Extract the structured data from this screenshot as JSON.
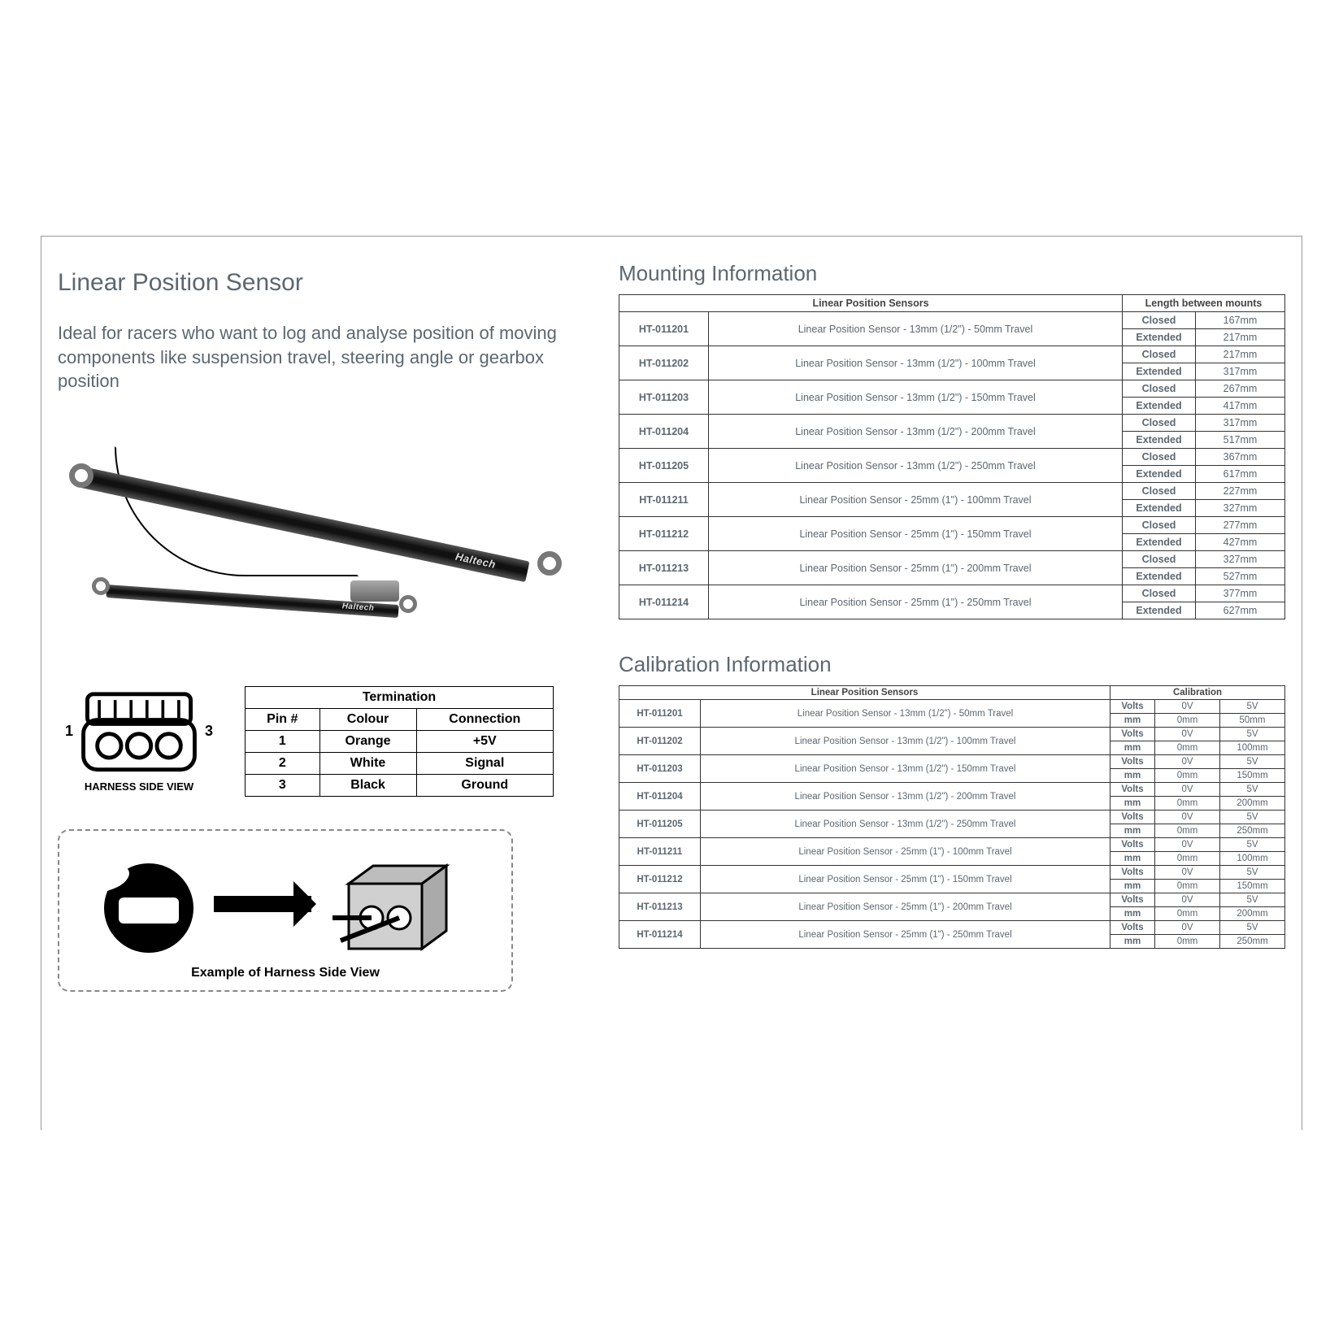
{
  "title": "Linear Position Sensor",
  "subtitle": "Ideal for racers who want to log and analyse position of moving components like suspension travel, steering angle or gearbox position",
  "mounting_heading": "Mounting Information",
  "calibration_heading": "Calibration Information",
  "harness_caption": "HARNESS SIDE VIEW",
  "pin_left": "1",
  "pin_right": "3",
  "example_caption": "Example of Harness Side View",
  "brand_text": "Haltech",
  "termination": {
    "title": "Termination",
    "columns": [
      "Pin #",
      "Colour",
      "Connection"
    ],
    "rows": [
      [
        "1",
        "Orange",
        "+5V"
      ],
      [
        "2",
        "White",
        "Signal"
      ],
      [
        "3",
        "Black",
        "Ground"
      ]
    ]
  },
  "mounting": {
    "head_sensors": "Linear Position Sensors",
    "head_length": "Length between mounts",
    "state_closed": "Closed",
    "state_extended": "Extended",
    "rows": [
      {
        "pn": "HT-011201",
        "desc": "Linear Position Sensor - 13mm (1/2\") - 50mm Travel",
        "closed": "167mm",
        "extended": "217mm"
      },
      {
        "pn": "HT-011202",
        "desc": "Linear Position Sensor - 13mm (1/2\") - 100mm Travel",
        "closed": "217mm",
        "extended": "317mm"
      },
      {
        "pn": "HT-011203",
        "desc": "Linear Position Sensor - 13mm (1/2\") - 150mm Travel",
        "closed": "267mm",
        "extended": "417mm"
      },
      {
        "pn": "HT-011204",
        "desc": "Linear Position Sensor - 13mm (1/2\") - 200mm Travel",
        "closed": "317mm",
        "extended": "517mm"
      },
      {
        "pn": "HT-011205",
        "desc": "Linear Position Sensor - 13mm (1/2\") - 250mm Travel",
        "closed": "367mm",
        "extended": "617mm"
      },
      {
        "pn": "HT-011211",
        "desc": "Linear Position Sensor - 25mm (1\") - 100mm Travel",
        "closed": "227mm",
        "extended": "327mm"
      },
      {
        "pn": "HT-011212",
        "desc": "Linear Position Sensor - 25mm (1\") - 150mm Travel",
        "closed": "277mm",
        "extended": "427mm"
      },
      {
        "pn": "HT-011213",
        "desc": "Linear Position Sensor - 25mm (1\") - 200mm Travel",
        "closed": "327mm",
        "extended": "527mm"
      },
      {
        "pn": "HT-011214",
        "desc": "Linear Position Sensor - 25mm (1\") - 250mm Travel",
        "closed": "377mm",
        "extended": "627mm"
      }
    ]
  },
  "calibration": {
    "head_sensors": "Linear Position Sensors",
    "head_cal": "Calibration",
    "label_volts": "Volts",
    "label_mm": "mm",
    "rows": [
      {
        "pn": "HT-011201",
        "desc": "Linear Position Sensor - 13mm (1/2\") - 50mm Travel",
        "v0": "0V",
        "v1": "5V",
        "m0": "0mm",
        "m1": "50mm"
      },
      {
        "pn": "HT-011202",
        "desc": "Linear Position Sensor - 13mm (1/2\") - 100mm Travel",
        "v0": "0V",
        "v1": "5V",
        "m0": "0mm",
        "m1": "100mm"
      },
      {
        "pn": "HT-011203",
        "desc": "Linear Position Sensor - 13mm (1/2\") - 150mm Travel",
        "v0": "0V",
        "v1": "5V",
        "m0": "0mm",
        "m1": "150mm"
      },
      {
        "pn": "HT-011204",
        "desc": "Linear Position Sensor - 13mm (1/2\") - 200mm Travel",
        "v0": "0V",
        "v1": "5V",
        "m0": "0mm",
        "m1": "200mm"
      },
      {
        "pn": "HT-011205",
        "desc": "Linear Position Sensor - 13mm (1/2\") - 250mm Travel",
        "v0": "0V",
        "v1": "5V",
        "m0": "0mm",
        "m1": "250mm"
      },
      {
        "pn": "HT-011211",
        "desc": "Linear Position Sensor - 25mm (1\") - 100mm Travel",
        "v0": "0V",
        "v1": "5V",
        "m0": "0mm",
        "m1": "100mm"
      },
      {
        "pn": "HT-011212",
        "desc": "Linear Position Sensor - 25mm (1\") - 150mm Travel",
        "v0": "0V",
        "v1": "5V",
        "m0": "0mm",
        "m1": "150mm"
      },
      {
        "pn": "HT-011213",
        "desc": "Linear Position Sensor - 25mm (1\") - 200mm Travel",
        "v0": "0V",
        "v1": "5V",
        "m0": "0mm",
        "m1": "200mm"
      },
      {
        "pn": "HT-011214",
        "desc": "Linear Position Sensor - 25mm (1\") - 250mm Travel",
        "v0": "0V",
        "v1": "5V",
        "m0": "0mm",
        "m1": "250mm"
      }
    ]
  },
  "colors": {
    "text": "#5c6770",
    "border": "#333333",
    "background": "#ffffff"
  }
}
